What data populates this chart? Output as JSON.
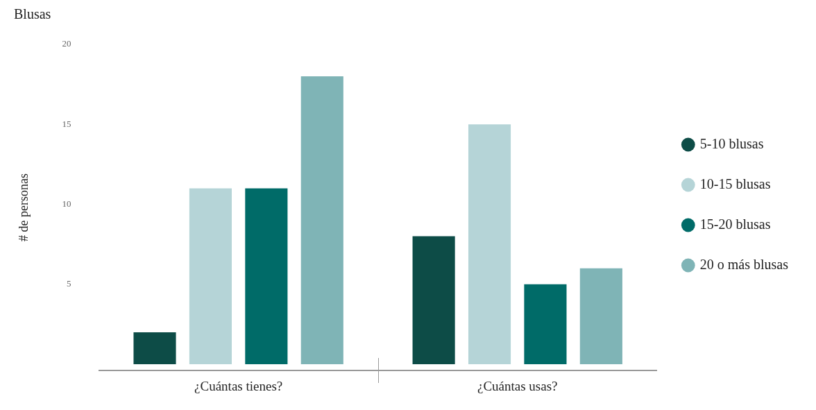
{
  "chart_data": {
    "type": "bar",
    "title": "Blusas",
    "ylabel": "# de personas",
    "categories": [
      "¿Cuántas tienes?",
      "¿Cuántas usas?"
    ],
    "series": [
      {
        "name": "5-10 blusas",
        "color": "#0d4c47",
        "values": [
          2,
          8
        ]
      },
      {
        "name": "10-15 blusas",
        "color": "#b5d4d7",
        "values": [
          11,
          15
        ]
      },
      {
        "name": "15-20 blusas",
        "color": "#006b68",
        "values": [
          11,
          5
        ]
      },
      {
        "name": "20 o más blusas",
        "color": "#7fb4b6",
        "values": [
          18,
          6
        ]
      }
    ],
    "ylim": [
      -0.4,
      20
    ],
    "yticks": [
      5,
      10,
      15,
      20
    ],
    "grid": false,
    "legend": "right"
  }
}
